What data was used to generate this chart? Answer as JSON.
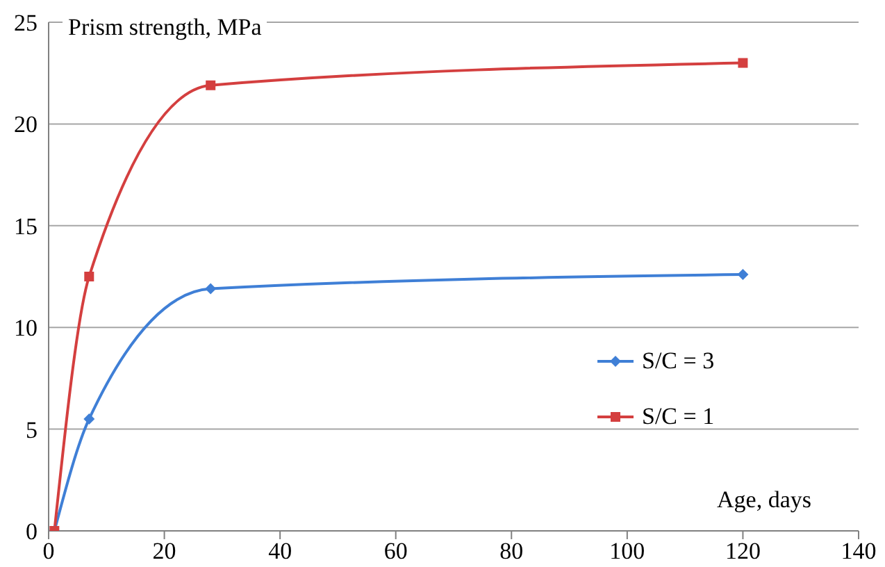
{
  "chart_data": {
    "type": "line",
    "xlabel": "Age, days",
    "ylabel": "Prism strength, MPa",
    "series": [
      {
        "name": "S/C = 3",
        "color": "#3f7fd6",
        "marker": "diamond",
        "x": [
          1,
          7,
          28,
          120
        ],
        "values": [
          0,
          5.5,
          11.9,
          12.6
        ]
      },
      {
        "name": "S/C = 1",
        "color": "#d43f3f",
        "marker": "square",
        "x": [
          1,
          7,
          28,
          120
        ],
        "values": [
          0,
          12.5,
          21.9,
          23
        ]
      }
    ],
    "xlim": [
      0,
      140
    ],
    "xticks": [
      0,
      20,
      40,
      60,
      80,
      100,
      120,
      140
    ],
    "ylim": [
      0,
      25
    ],
    "yticks": [
      0,
      5,
      10,
      15,
      20,
      25
    ],
    "grid": "y",
    "legend": "right"
  }
}
